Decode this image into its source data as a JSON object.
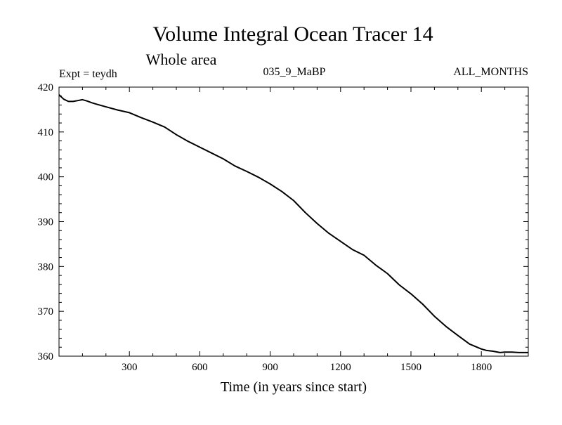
{
  "chart_data": {
    "type": "line",
    "title": "Volume Integral Ocean Tracer 14",
    "subtitle": "Whole area",
    "annotations": {
      "left": "Expt = teydh",
      "center": "035_9_MaBP",
      "right": "ALL_MONTHS"
    },
    "xlabel": "Time (in years since start)",
    "ylabel": "",
    "xlim": [
      0,
      2000
    ],
    "ylim": [
      360,
      420
    ],
    "xticks": [
      300,
      600,
      900,
      1200,
      1500,
      1800
    ],
    "yticks": [
      360,
      370,
      380,
      390,
      400,
      410,
      420
    ],
    "grid": false,
    "legend": "none",
    "series": [
      {
        "x": [
          0,
          20,
          40,
          60,
          80,
          100,
          120,
          140,
          160,
          200,
          250,
          300,
          350,
          400,
          450,
          500,
          550,
          600,
          650,
          700,
          750,
          800,
          850,
          900,
          950,
          1000,
          1050,
          1100,
          1150,
          1200,
          1250,
          1300,
          1350,
          1400,
          1450,
          1500,
          1550,
          1600,
          1650,
          1700,
          1750,
          1800,
          1820,
          1850,
          1880,
          1900,
          1930,
          1960,
          2000
        ],
        "y": [
          418.3,
          417.3,
          416.8,
          416.8,
          417.0,
          417.2,
          416.9,
          416.5,
          416.2,
          415.6,
          414.9,
          414.3,
          413.2,
          412.2,
          411.1,
          409.4,
          407.9,
          406.6,
          405.3,
          404.0,
          402.4,
          401.2,
          399.9,
          398.4,
          396.7,
          394.7,
          392.0,
          389.6,
          387.4,
          385.6,
          383.8,
          382.5,
          380.3,
          378.4,
          375.9,
          373.9,
          371.6,
          368.9,
          366.6,
          364.6,
          362.7,
          361.6,
          361.3,
          361.1,
          360.8,
          360.9,
          360.9,
          360.8,
          360.8
        ]
      }
    ]
  }
}
